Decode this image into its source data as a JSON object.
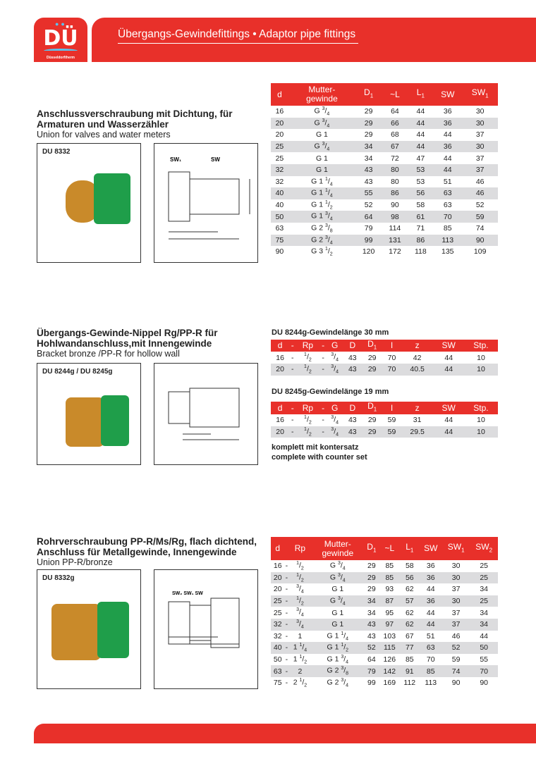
{
  "header": {
    "logo_text": "DÜ",
    "logo_brand": "Düsseldorftherm",
    "title": "Übergangs-Gewindefittings • Adaptor pipe fittings"
  },
  "colors": {
    "brand_red": "#e8302a",
    "row_alt": "#dcdcde",
    "fitting_green": "#1f9e4a",
    "brass": "#c98a2a"
  },
  "sections": [
    {
      "title": "Anschlussverschraubung mit Dichtung, für Armaturen und Wasserzähler",
      "subtitle": "Union for valves and water meters",
      "code": "DU 8332",
      "tables": [
        {
          "caption": "",
          "columns": [
            "d",
            "Mutter-gewinde",
            "D1",
            "~L",
            "L1",
            "SW",
            "SW1"
          ],
          "rows": [
            [
              "16",
              "G 3/4",
              "29",
              "64",
              "44",
              "36",
              "30"
            ],
            [
              "20",
              "G 3/4",
              "29",
              "66",
              "44",
              "36",
              "30"
            ],
            [
              "20",
              "G 1",
              "29",
              "68",
              "44",
              "44",
              "37"
            ],
            [
              "25",
              "G 3/4",
              "34",
              "67",
              "44",
              "36",
              "30"
            ],
            [
              "25",
              "G 1",
              "34",
              "72",
              "47",
              "44",
              "37"
            ],
            [
              "32",
              "G 1",
              "43",
              "80",
              "53",
              "44",
              "37"
            ],
            [
              "32",
              "G 1 1/4",
              "43",
              "80",
              "53",
              "51",
              "46"
            ],
            [
              "40",
              "G 1 1/4",
              "55",
              "86",
              "56",
              "63",
              "46"
            ],
            [
              "40",
              "G 1 1/2",
              "52",
              "90",
              "58",
              "63",
              "52"
            ],
            [
              "50",
              "G 1 3/4",
              "64",
              "98",
              "61",
              "70",
              "59"
            ],
            [
              "63",
              "G 2 3/8",
              "79",
              "114",
              "71",
              "85",
              "74"
            ],
            [
              "75",
              "G 2 3/4",
              "99",
              "131",
              "86",
              "113",
              "90"
            ],
            [
              "90",
              "G 3 1/2",
              "120",
              "172",
              "118",
              "135",
              "109"
            ]
          ]
        }
      ]
    },
    {
      "title": "Übergangs-Gewinde-Nippel Rg/PP-R für Hohlwandanschluss,mit Innengewinde",
      "subtitle": "Bracket bronze /PP-R for hollow wall",
      "code": "DU 8244g / DU 8245g",
      "tables": [
        {
          "caption": "DU 8244g-Gewindelänge 30 mm",
          "columns": [
            "d",
            "-",
            "Rp",
            "-",
            "G",
            "D",
            "D1",
            "l",
            "z",
            "SW",
            "Stp."
          ],
          "rows": [
            [
              "16",
              "-",
              "1/2",
              "-",
              "3/4",
              "43",
              "29",
              "70",
              "42",
              "44",
              "10"
            ],
            [
              "20",
              "-",
              "1/2",
              "-",
              "3/4",
              "43",
              "29",
              "70",
              "40.5",
              "44",
              "10"
            ]
          ]
        },
        {
          "caption": "DU 8245g-Gewindelänge 19 mm",
          "columns": [
            "d",
            "-",
            "Rp",
            "-",
            "G",
            "D",
            "D1",
            "l",
            "z",
            "SW",
            "Stp."
          ],
          "rows": [
            [
              "16",
              "-",
              "1/2",
              "-",
              "3/4",
              "43",
              "29",
              "59",
              "31",
              "44",
              "10"
            ],
            [
              "20",
              "-",
              "1/2",
              "-",
              "3/4",
              "43",
              "29",
              "59",
              "29.5",
              "44",
              "10"
            ]
          ]
        }
      ],
      "note": [
        "komplett mit kontersatz",
        "complete with counter set"
      ]
    },
    {
      "title": "Rohrverschraubung PP-R/Ms/Rg, flach dichtend, Anschluss für Metallgewinde, Innengewinde",
      "subtitle": "Union PP-R/bronze",
      "code": "DU 8332g",
      "tables": [
        {
          "caption": "",
          "columns": [
            "d",
            "",
            "Rp",
            "Mutter-gewinde",
            "D1",
            "~L",
            "L1",
            "SW",
            "SW1",
            "SW2"
          ],
          "rows": [
            [
              "16",
              "-",
              "1/2",
              "G 3/4",
              "29",
              "85",
              "58",
              "36",
              "30",
              "25"
            ],
            [
              "20",
              "-",
              "1/2",
              "G 3/4",
              "29",
              "85",
              "56",
              "36",
              "30",
              "25"
            ],
            [
              "20",
              "-",
              "3/4",
              "G 1",
              "29",
              "93",
              "62",
              "44",
              "37",
              "34"
            ],
            [
              "25",
              "-",
              "1/2",
              "G 3/4",
              "34",
              "87",
              "57",
              "36",
              "30",
              "25"
            ],
            [
              "25",
              "-",
              "3/4",
              "G 1",
              "34",
              "95",
              "62",
              "44",
              "37",
              "34"
            ],
            [
              "32",
              "-",
              "3/4",
              "G 1",
              "43",
              "97",
              "62",
              "44",
              "37",
              "34"
            ],
            [
              "32",
              "-",
              "1",
              "G 1 1/4",
              "43",
              "103",
              "67",
              "51",
              "46",
              "44"
            ],
            [
              "40",
              "-",
              "1 1/4",
              "G 1 1/2",
              "52",
              "115",
              "77",
              "63",
              "52",
              "50"
            ],
            [
              "50",
              "-",
              "1 1/2",
              "G 1 3/4",
              "64",
              "126",
              "85",
              "70",
              "59",
              "55"
            ],
            [
              "63",
              "-",
              "2",
              "G 2 3/8",
              "79",
              "142",
              "91",
              "85",
              "74",
              "70"
            ],
            [
              "75",
              "-",
              "2 1/2",
              "G 2 3/4",
              "99",
              "169",
              "112",
              "113",
              "90",
              "90"
            ]
          ]
        }
      ]
    }
  ]
}
